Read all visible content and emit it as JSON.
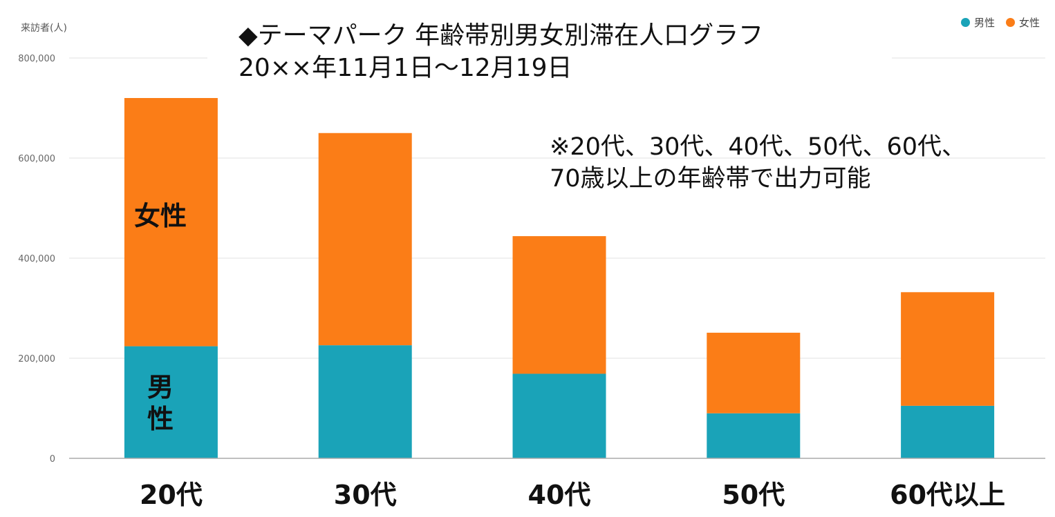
{
  "chart_data": {
    "type": "bar",
    "stacked": true,
    "title_line1": "◆テーマパーク 年齢帯別男女別滞在人口グラフ",
    "title_line2": "20××年11月1日～12月19日",
    "note_line1": "※20代、30代、40代、50代、60代、",
    "note_line2": "70歳以上の年齢帯で出力可能",
    "ylabel": "来訪者(人)",
    "xlabel": "",
    "ylim": [
      0,
      800000
    ],
    "yticks": [
      0,
      200000,
      400000,
      600000,
      800000
    ],
    "ytick_labels": [
      "0",
      "200,000",
      "400,000",
      "600,000",
      "800,000"
    ],
    "grid": true,
    "legend_position": "top-right",
    "categories": [
      "20代",
      "30代",
      "40代",
      "50代",
      "60代以上"
    ],
    "series": [
      {
        "name": "男性",
        "color": "#1aa3b8",
        "values": [
          224000,
          226000,
          169000,
          90000,
          105000
        ]
      },
      {
        "name": "女性",
        "color": "#fb7d17",
        "values": [
          496000,
          424000,
          275000,
          161000,
          227000
        ]
      }
    ],
    "annotations": {
      "female": "女性",
      "male_line1": "男",
      "male_line2": "性"
    }
  }
}
